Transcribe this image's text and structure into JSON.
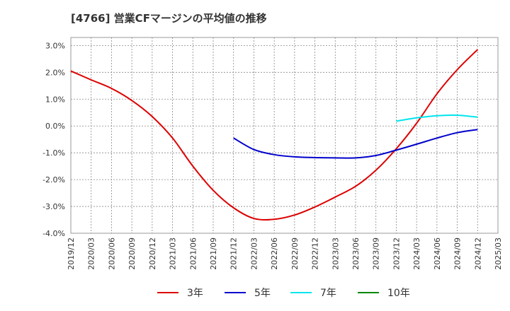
{
  "chart_data": {
    "type": "line",
    "title": "[4766]  営業CFマージンの平均値の推移",
    "xlabel": "",
    "ylabel": "",
    "x_ticks": [
      "2019/12",
      "2020/03",
      "2020/06",
      "2020/09",
      "2020/12",
      "2021/03",
      "2021/06",
      "2021/09",
      "2021/12",
      "2022/03",
      "2022/06",
      "2022/09",
      "2022/12",
      "2023/03",
      "2023/06",
      "2023/09",
      "2023/12",
      "2024/03",
      "2024/06",
      "2024/09",
      "2024/12",
      "2025/03"
    ],
    "y_ticks": [
      "3.0%",
      "2.0%",
      "1.0%",
      "0.0%",
      "-1.0%",
      "-2.0%",
      "-3.0%",
      "-4.0%"
    ],
    "y_tick_values": [
      3,
      2,
      1,
      0,
      -1,
      -2,
      -3,
      -4
    ],
    "ylim": [
      -4,
      3.3
    ],
    "grid": true,
    "legend_position": "bottom",
    "series": [
      {
        "name": "3年",
        "color": "#dd0000",
        "points": [
          [
            0,
            2.05
          ],
          [
            1,
            1.72
          ],
          [
            2,
            1.4
          ],
          [
            3,
            0.95
          ],
          [
            4,
            0.35
          ],
          [
            5,
            -0.45
          ],
          [
            6,
            -1.5
          ],
          [
            7,
            -2.4
          ],
          [
            8,
            -3.05
          ],
          [
            9,
            -3.45
          ],
          [
            10,
            -3.48
          ],
          [
            11,
            -3.32
          ],
          [
            12,
            -3.02
          ],
          [
            13,
            -2.65
          ],
          [
            14,
            -2.25
          ],
          [
            15,
            -1.65
          ],
          [
            16,
            -0.85
          ],
          [
            17,
            0.1
          ],
          [
            18,
            1.2
          ],
          [
            19,
            2.1
          ],
          [
            20,
            2.85
          ]
        ]
      },
      {
        "name": "5年",
        "color": "#0000cc",
        "points": [
          [
            8,
            -0.45
          ],
          [
            9,
            -0.88
          ],
          [
            10,
            -1.07
          ],
          [
            11,
            -1.15
          ],
          [
            12,
            -1.18
          ],
          [
            13,
            -1.19
          ],
          [
            14,
            -1.19
          ],
          [
            15,
            -1.1
          ],
          [
            16,
            -0.9
          ],
          [
            17,
            -0.68
          ],
          [
            18,
            -0.45
          ],
          [
            19,
            -0.25
          ],
          [
            20,
            -0.13
          ]
        ]
      },
      {
        "name": "7年",
        "color": "#00e5ee",
        "points": [
          [
            16,
            0.18
          ],
          [
            17,
            0.3
          ],
          [
            18,
            0.38
          ],
          [
            19,
            0.4
          ],
          [
            20,
            0.33
          ]
        ]
      },
      {
        "name": "10年",
        "color": "#008800",
        "points": []
      }
    ]
  }
}
